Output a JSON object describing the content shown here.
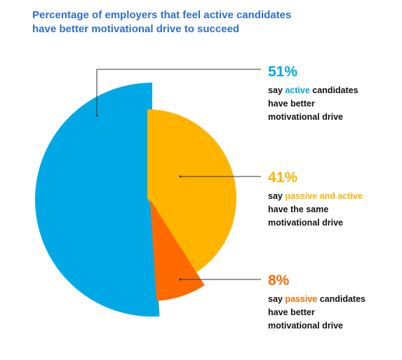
{
  "title": {
    "line1": "Percentage of employers that feel active candidates",
    "line2": "have better motivational drive to succeed"
  },
  "colors": {
    "title": "#2f6fd1",
    "active": "#00a9e6",
    "same": "#ffb400",
    "passive": "#ff6a00",
    "text": "#111111"
  },
  "callouts": {
    "active": {
      "pct": "51%",
      "pre": "say ",
      "highlight": "active",
      "post": " candidates",
      "line2": "have better",
      "line3": "motivational drive"
    },
    "same": {
      "pct": "41%",
      "pre": "say ",
      "highlight": "passive and active",
      "post": "",
      "line2": "have the same",
      "line3": "motivational drive"
    },
    "passive": {
      "pct": "8%",
      "pre": "say ",
      "highlight": "passive",
      "post": " candidates",
      "line2": "have better",
      "line3": "motivational drive"
    }
  },
  "chart_data": {
    "type": "pie",
    "title": "Percentage of employers that feel active candidates have better motivational drive to succeed",
    "series": [
      {
        "name": "active",
        "value": 51,
        "color": "#00a9e6"
      },
      {
        "name": "passive and active",
        "value": 41,
        "color": "#ffb400"
      },
      {
        "name": "passive",
        "value": 8,
        "color": "#ff6a00"
      }
    ]
  }
}
